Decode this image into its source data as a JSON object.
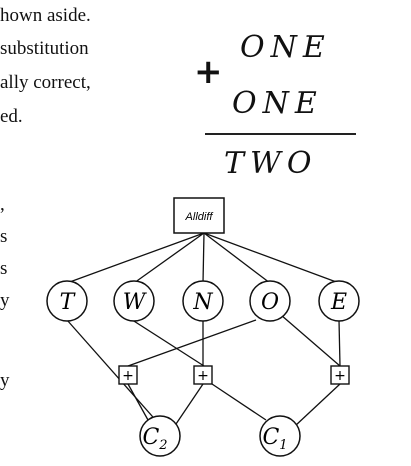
{
  "text_fragments": {
    "line1": "hown aside.",
    "line2": "substitution",
    "line3": "ally correct,",
    "line4": "ed."
  },
  "side_fragments": [
    ",",
    "s",
    "s",
    "y",
    "y"
  ],
  "equation": {
    "operator": "+",
    "addend1": "ONE",
    "addend2": "ONE",
    "sum": "TWO"
  },
  "graph": {
    "constraint": "Alldiff",
    "variables": [
      "T",
      "W",
      "N",
      "O",
      "E"
    ],
    "adders": [
      "+",
      "+",
      "+"
    ],
    "carries": [
      {
        "base": "C",
        "sub": "2"
      },
      {
        "base": "C",
        "sub": "1"
      }
    ]
  }
}
